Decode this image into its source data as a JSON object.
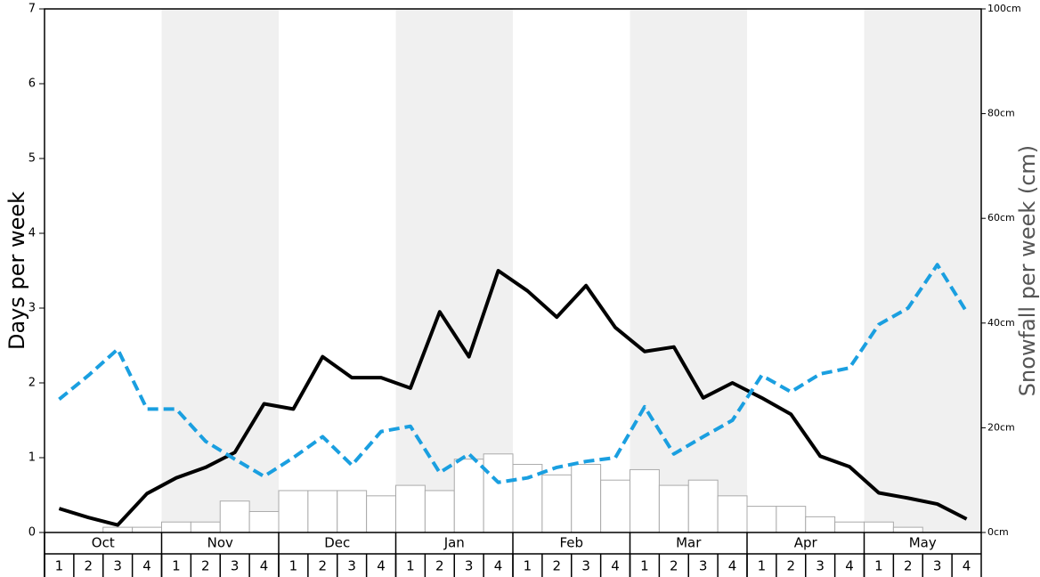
{
  "chart_data": {
    "type": "bar-line",
    "months": [
      "Oct",
      "Nov",
      "Dec",
      "Jan",
      "Feb",
      "Mar",
      "Apr",
      "May"
    ],
    "categories": [
      "1",
      "2",
      "3",
      "4",
      "1",
      "2",
      "3",
      "4",
      "1",
      "2",
      "3",
      "4",
      "1",
      "2",
      "3",
      "4",
      "1",
      "2",
      "3",
      "4",
      "1",
      "2",
      "3",
      "4",
      "1",
      "2",
      "3",
      "4",
      "1",
      "2",
      "3",
      "4"
    ],
    "y_label": "Days per week",
    "y2_label": "Snowfall per week (cm)",
    "ylim": [
      0,
      7
    ],
    "yticks": [
      0,
      1,
      2,
      3,
      4,
      5,
      6,
      7
    ],
    "y2lim": [
      0,
      100
    ],
    "y2ticks": [
      {
        "value": 0,
        "label": "0cm"
      },
      {
        "value": 20,
        "label": "20cm"
      },
      {
        "value": 40,
        "label": "40cm"
      },
      {
        "value": 60,
        "label": "60cm"
      },
      {
        "value": 80,
        "label": "80cm"
      },
      {
        "value": 100,
        "label": "100cm"
      }
    ],
    "series": [
      {
        "type": "bar",
        "axis": "y2",
        "color": "#ffffff",
        "values": [
          0,
          0,
          1,
          1,
          2,
          2,
          6,
          4,
          8,
          8,
          8,
          7,
          9,
          8,
          14,
          15,
          13,
          11,
          13,
          10,
          12,
          9,
          10,
          7,
          5,
          5,
          3,
          2,
          2,
          1,
          0,
          0
        ]
      },
      {
        "type": "line",
        "color": "#000000",
        "dashed": false,
        "values": [
          0.32,
          0.2,
          0.1,
          0.52,
          0.73,
          0.87,
          1.07,
          1.72,
          1.65,
          2.35,
          2.07,
          2.07,
          1.93,
          2.95,
          2.35,
          3.5,
          3.23,
          2.88,
          3.3,
          2.74,
          2.42,
          2.48,
          1.8,
          2.0,
          1.8,
          1.58,
          1.02,
          0.88,
          0.53,
          0.46,
          0.38,
          0.18
        ]
      },
      {
        "type": "line",
        "color": "#1a9fe0",
        "dashed": true,
        "values": [
          1.78,
          2.1,
          2.45,
          1.65,
          1.65,
          1.22,
          0.98,
          0.75,
          1.0,
          1.28,
          0.9,
          1.35,
          1.42,
          0.8,
          1.05,
          0.67,
          0.73,
          0.87,
          0.95,
          1.0,
          1.68,
          1.05,
          1.28,
          1.5,
          2.1,
          1.88,
          2.12,
          2.2,
          2.78,
          3.0,
          3.58,
          2.95
        ]
      }
    ]
  }
}
